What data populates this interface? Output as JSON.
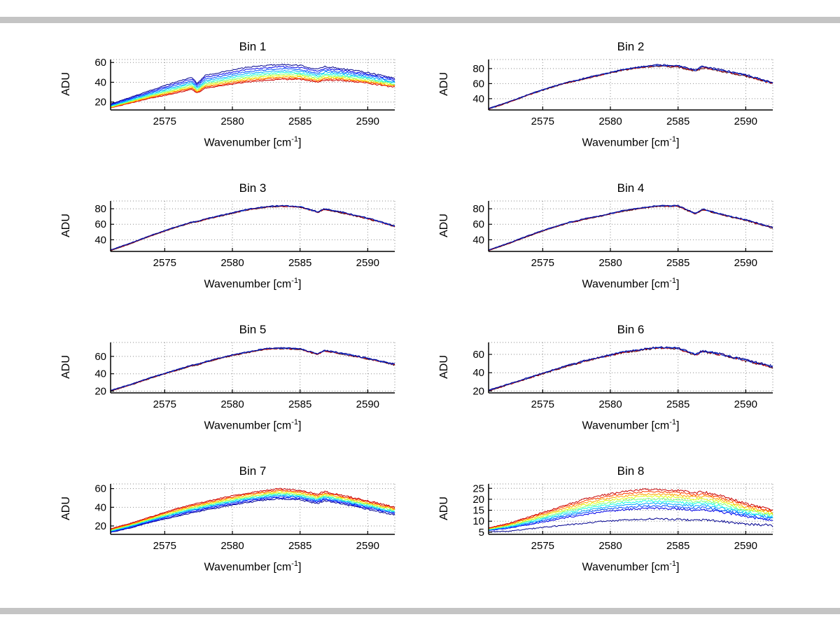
{
  "page": {
    "background": "#ffffff",
    "chrome_color": "#c4c4c4"
  },
  "labels": {
    "xlabel_main": "Wavenumber [cm",
    "xlabel_sup": "-1",
    "xlabel_close": "]",
    "ylabel": "ADU"
  },
  "chart_data": [
    {
      "type": "line",
      "title": "Bin 1",
      "ylabel": "ADU",
      "xlabel": "Wavenumber [cm⁻¹]",
      "xlim": [
        2571,
        2592
      ],
      "xticks": [
        2575,
        2580,
        2585,
        2590
      ],
      "ylim": [
        12,
        63
      ],
      "yticks": [
        20,
        40,
        60
      ],
      "grid": true,
      "legend": "none",
      "x": [
        2571,
        2572.5,
        2574,
        2575.5,
        2577,
        2577.4,
        2578,
        2579.5,
        2581,
        2582.5,
        2583.5,
        2585,
        2586.3,
        2586.8,
        2588,
        2590,
        2592
      ],
      "upper": [
        18,
        25,
        32,
        39,
        45,
        39,
        47,
        51,
        55,
        57,
        58,
        57,
        53,
        56,
        54,
        50,
        44
      ],
      "lower": [
        14,
        19,
        24,
        28,
        33,
        29,
        34,
        37,
        40,
        42,
        43,
        43,
        40,
        42,
        42,
        39,
        35
      ],
      "series_t": [
        1,
        0.85,
        0.71,
        0.58,
        0.46,
        0.35,
        0.25,
        0.16,
        0.08,
        0
      ],
      "colors": [
        "#00008f",
        "#0000ea",
        "#004cff",
        "#00a8ff",
        "#16ffe1",
        "#7dff79",
        "#e4ff12",
        "#ffa700",
        "#ff4000",
        "#c80000"
      ],
      "noise": 0.7
    },
    {
      "type": "line",
      "title": "Bin 2",
      "ylabel": "ADU",
      "xlabel": "Wavenumber [cm⁻¹]",
      "xlim": [
        2571,
        2592
      ],
      "xticks": [
        2575,
        2580,
        2585,
        2590
      ],
      "ylim": [
        25,
        92
      ],
      "yticks": [
        40,
        60,
        80
      ],
      "grid": true,
      "legend": "none",
      "x": [
        2571,
        2572.5,
        2574,
        2575.5,
        2577,
        2577.4,
        2578,
        2579.5,
        2581,
        2582.5,
        2583.5,
        2585,
        2586.3,
        2586.8,
        2588,
        2590,
        2592
      ],
      "upper": [
        27,
        36,
        46,
        55,
        63,
        64,
        67,
        73,
        79,
        83,
        85,
        84,
        78,
        83,
        79,
        72,
        61
      ],
      "lower": [
        26,
        35,
        45,
        54,
        62,
        63,
        66,
        72,
        78,
        82,
        83,
        82,
        76,
        81,
        77,
        70,
        60
      ],
      "series_t": [
        1,
        0.7,
        0.35,
        0
      ],
      "colors": [
        "#00008f",
        "#0050ff",
        "#c80000",
        "#500000"
      ],
      "noise": 1.0
    },
    {
      "type": "line",
      "title": "Bin 3",
      "ylabel": "ADU",
      "xlabel": "Wavenumber [cm⁻¹]",
      "xlim": [
        2571,
        2592
      ],
      "xticks": [
        2575,
        2580,
        2585,
        2590
      ],
      "ylim": [
        25,
        90
      ],
      "yticks": [
        40,
        60,
        80
      ],
      "grid": true,
      "legend": "none",
      "x": [
        2571,
        2572.5,
        2574,
        2575.5,
        2577,
        2577.4,
        2578,
        2579.5,
        2581,
        2582.5,
        2583.5,
        2585,
        2586.3,
        2586.8,
        2588,
        2590,
        2592
      ],
      "upper": [
        27,
        36,
        46,
        55,
        63,
        64,
        67,
        73,
        79,
        83,
        84,
        83,
        76,
        80,
        76,
        68,
        58
      ],
      "lower": [
        26,
        35,
        45,
        54,
        62,
        63,
        66,
        72,
        78,
        82,
        83,
        82,
        75,
        79,
        75,
        67,
        57
      ],
      "series_t": [
        1,
        0.7,
        0.35,
        0
      ],
      "colors": [
        "#00008f",
        "#0050ff",
        "#c80000",
        "#500000"
      ],
      "noise": 0.7
    },
    {
      "type": "line",
      "title": "Bin 4",
      "ylabel": "ADU",
      "xlabel": "Wavenumber [cm⁻¹]",
      "xlim": [
        2571,
        2592
      ],
      "xticks": [
        2575,
        2580,
        2585,
        2590
      ],
      "ylim": [
        25,
        90
      ],
      "yticks": [
        40,
        60,
        80
      ],
      "grid": true,
      "legend": "none",
      "x": [
        2571,
        2572.5,
        2574,
        2575.5,
        2577,
        2577.4,
        2578,
        2579.5,
        2581,
        2582.5,
        2583.5,
        2585,
        2586.3,
        2586.8,
        2588,
        2590,
        2592
      ],
      "upper": [
        27,
        36,
        46,
        55,
        63,
        64,
        67,
        72,
        78,
        82,
        84,
        84,
        74,
        80,
        74,
        66,
        56
      ],
      "lower": [
        26,
        35,
        45,
        54,
        62,
        63,
        66,
        71,
        77,
        81,
        83,
        83,
        73,
        79,
        73,
        65,
        55
      ],
      "series_t": [
        1,
        0.7,
        0.35,
        0
      ],
      "colors": [
        "#00008f",
        "#0050ff",
        "#c80000",
        "#500000"
      ],
      "noise": 0.7
    },
    {
      "type": "line",
      "title": "Bin 5",
      "ylabel": "ADU",
      "xlabel": "Wavenumber [cm⁻¹]",
      "xlim": [
        2571,
        2592
      ],
      "xticks": [
        2575,
        2580,
        2585,
        2590
      ],
      "ylim": [
        18,
        76
      ],
      "yticks": [
        20,
        40,
        60
      ],
      "grid": true,
      "legend": "none",
      "x": [
        2571,
        2572.5,
        2574,
        2575.5,
        2577,
        2577.4,
        2578,
        2579.5,
        2581,
        2582.5,
        2583.5,
        2585,
        2586.3,
        2586.8,
        2588,
        2590,
        2592
      ],
      "upper": [
        21,
        28,
        36,
        43,
        50,
        51,
        54,
        60,
        65,
        69,
        70,
        69,
        63,
        67,
        64,
        58,
        51
      ],
      "lower": [
        20,
        27,
        35,
        42,
        49,
        50,
        53,
        59,
        64,
        68,
        69,
        68,
        62,
        66,
        63,
        57,
        50
      ],
      "series_t": [
        1,
        0.7,
        0.35,
        0
      ],
      "colors": [
        "#00008f",
        "#0050ff",
        "#c80000",
        "#500000"
      ],
      "noise": 0.7
    },
    {
      "type": "line",
      "title": "Bin 6",
      "ylabel": "ADU",
      "xlabel": "Wavenumber [cm⁻¹]",
      "xlim": [
        2571,
        2592
      ],
      "xticks": [
        2575,
        2580,
        2585,
        2590
      ],
      "ylim": [
        18,
        73
      ],
      "yticks": [
        20,
        40,
        60
      ],
      "grid": true,
      "legend": "none",
      "x": [
        2571,
        2572.5,
        2574,
        2575.5,
        2577,
        2577.4,
        2578,
        2579.5,
        2581,
        2582.5,
        2583.5,
        2585,
        2586.3,
        2586.8,
        2588,
        2590,
        2592
      ],
      "upper": [
        21,
        28,
        35,
        42,
        49,
        50,
        53,
        58,
        63,
        66,
        68,
        67,
        60,
        64,
        61,
        54,
        47
      ],
      "lower": [
        20,
        27,
        34,
        41,
        48,
        49,
        52,
        57,
        62,
        65,
        67,
        66,
        59,
        63,
        60,
        53,
        46
      ],
      "series_t": [
        1,
        0.7,
        0.35,
        0
      ],
      "colors": [
        "#00008f",
        "#0050ff",
        "#c80000",
        "#500000"
      ],
      "noise": 1.1
    },
    {
      "type": "line",
      "title": "Bin 7",
      "ylabel": "ADU",
      "xlabel": "Wavenumber [cm⁻¹]",
      "xlim": [
        2571,
        2592
      ],
      "xticks": [
        2575,
        2580,
        2585,
        2590
      ],
      "ylim": [
        11,
        65
      ],
      "yticks": [
        20,
        40,
        60
      ],
      "grid": true,
      "legend": "none",
      "x": [
        2571,
        2572.5,
        2574,
        2575.5,
        2577,
        2577.4,
        2578,
        2579.5,
        2581,
        2582.5,
        2583.5,
        2585,
        2586.3,
        2586.8,
        2588,
        2590,
        2592
      ],
      "upper": [
        17,
        23,
        30,
        37,
        43,
        44,
        46,
        51,
        55,
        58,
        60,
        58,
        54,
        57,
        53,
        47,
        40
      ],
      "lower": [
        13,
        18,
        24,
        29,
        34,
        35,
        37,
        41,
        45,
        48,
        49,
        48,
        44,
        47,
        44,
        38,
        32
      ],
      "series_t": [
        1,
        0.88,
        0.77,
        0.66,
        0.55,
        0.45,
        0.35,
        0.25,
        0.13,
        0
      ],
      "colors": [
        "#c80000",
        "#ff4000",
        "#ffa700",
        "#e4ff12",
        "#7dff79",
        "#16ffe1",
        "#00a8ff",
        "#004cff",
        "#0000ea",
        "#00008f"
      ],
      "noise": 0.8
    },
    {
      "type": "line",
      "title": "Bin 8",
      "ylabel": "ADU",
      "xlabel": "Wavenumber [cm⁻¹]",
      "xlim": [
        2571,
        2592
      ],
      "xticks": [
        2575,
        2580,
        2585,
        2590
      ],
      "ylim": [
        4,
        27
      ],
      "yticks": [
        5,
        10,
        15,
        20,
        25
      ],
      "grid": true,
      "legend": "none",
      "x": [
        2571,
        2572.5,
        2574,
        2575.5,
        2577,
        2577.4,
        2578,
        2579.5,
        2581,
        2582.5,
        2583.5,
        2585,
        2586.3,
        2586.8,
        2588,
        2590,
        2592
      ],
      "upper": [
        7,
        9,
        12,
        15,
        18,
        18.5,
        20,
        22,
        23.5,
        24.5,
        24.5,
        24,
        23,
        23.5,
        22,
        18,
        15
      ],
      "lower": [
        5,
        5.5,
        6.5,
        7.5,
        8.5,
        8.6,
        9,
        10,
        10.5,
        11,
        11,
        10.8,
        10.3,
        10.6,
        10,
        8.8,
        8
      ],
      "series_t": [
        1,
        0.92,
        0.84,
        0.76,
        0.68,
        0.6,
        0.52,
        0.44,
        0.36,
        0
      ],
      "colors": [
        "#c80000",
        "#ff4000",
        "#ffa700",
        "#e4ff12",
        "#7dff79",
        "#16ffe1",
        "#00a8ff",
        "#004cff",
        "#0000ea",
        "#00008f"
      ],
      "noise": 0.5
    }
  ]
}
